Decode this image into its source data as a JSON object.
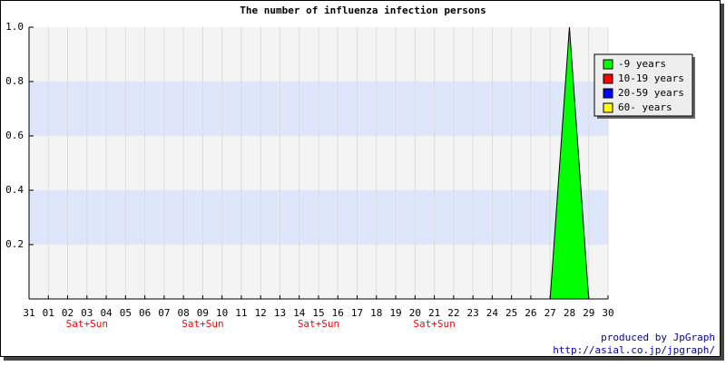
{
  "chart_data": {
    "type": "area",
    "title": "The number of influenza infection persons",
    "categories": [
      "31",
      "01",
      "02",
      "03",
      "04",
      "05",
      "06",
      "07",
      "08",
      "09",
      "10",
      "11",
      "12",
      "13",
      "14",
      "15",
      "16",
      "17",
      "18",
      "19",
      "20",
      "21",
      "22",
      "23",
      "24",
      "25",
      "26",
      "27",
      "28",
      "29",
      "30"
    ],
    "weekend_labels": [
      null,
      null,
      null,
      "Sat+Sun",
      null,
      null,
      null,
      null,
      null,
      "Sat+Sun",
      null,
      null,
      null,
      null,
      null,
      "Sat+Sun",
      null,
      null,
      null,
      null,
      null,
      "Sat+Sun",
      null,
      null,
      null,
      null,
      null,
      null,
      null,
      null,
      null
    ],
    "weekend_color": "#ff0000",
    "series": [
      {
        "name": "-9 years",
        "color": "#00ff00",
        "values": [
          0,
          0,
          0,
          0,
          0,
          0,
          0,
          0,
          0,
          0,
          0,
          0,
          0,
          0,
          0,
          0,
          0,
          0,
          0,
          0,
          0,
          0,
          0,
          0,
          0,
          0,
          0,
          0,
          1,
          0,
          0
        ]
      },
      {
        "name": "10-19 years",
        "color": "#ff0000",
        "values": [
          0,
          0,
          0,
          0,
          0,
          0,
          0,
          0,
          0,
          0,
          0,
          0,
          0,
          0,
          0,
          0,
          0,
          0,
          0,
          0,
          0,
          0,
          0,
          0,
          0,
          0,
          0,
          0,
          0,
          0,
          0
        ]
      },
      {
        "name": "20-59 years",
        "color": "#0000ff",
        "values": [
          0,
          0,
          0,
          0,
          0,
          0,
          0,
          0,
          0,
          0,
          0,
          0,
          0,
          0,
          0,
          0,
          0,
          0,
          0,
          0,
          0,
          0,
          0,
          0,
          0,
          0,
          0,
          0,
          0,
          0,
          0
        ]
      },
      {
        "name": "60- years",
        "color": "#ffff00",
        "values": [
          0,
          0,
          0,
          0,
          0,
          0,
          0,
          0,
          0,
          0,
          0,
          0,
          0,
          0,
          0,
          0,
          0,
          0,
          0,
          0,
          0,
          0,
          0,
          0,
          0,
          0,
          0,
          0,
          0,
          0,
          0
        ]
      }
    ],
    "ylim": [
      0,
      1
    ],
    "yticks": [
      0.2,
      0.4,
      0.6,
      0.8,
      {
        "value": 1,
        "label": "1.0"
      }
    ],
    "grid": true,
    "legend_position": "top-right",
    "credits": [
      "produced by JpGraph",
      "http://asial.co.jp/jpgraph/"
    ]
  }
}
